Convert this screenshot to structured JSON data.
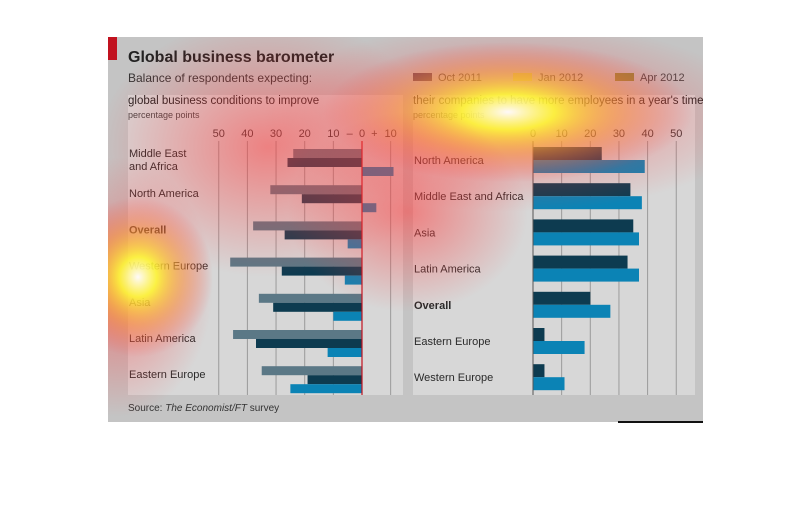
{
  "title": "Global business barometer",
  "subtitle": "Balance of respondents expecting:",
  "source_prefix": "Source: ",
  "source_italic": "The Economist/FT",
  "source_suffix": " survey",
  "colors": {
    "oct2011": "#5b7886",
    "jan2012": "#0d3b50",
    "apr2012": "#0b83b5",
    "zero_line": "#c1121f",
    "accent": "#c1121f"
  },
  "legend": [
    {
      "label": "Oct 2011",
      "color_key": "oct2011"
    },
    {
      "label": "Jan 2012",
      "color_key": "jan2012"
    },
    {
      "label": "Apr 2012",
      "color_key": "apr2012"
    }
  ],
  "chart_data": [
    {
      "type": "bar",
      "orientation": "horizontal",
      "title": "global business conditions to improve",
      "unit": "percentage points",
      "tick_labels": [
        "50",
        "40",
        "30",
        "20",
        "10",
        "–",
        "0",
        "+",
        "10"
      ],
      "ticks": [
        -50,
        -40,
        -30,
        -20,
        -10,
        0,
        10
      ],
      "xlim": [
        -55,
        13
      ],
      "grid": true,
      "categories": [
        "Middle East\nand Africa",
        "North America",
        "Overall",
        "Western Europe",
        "Asia",
        "Latin America",
        "Eastern Europe"
      ],
      "bold_category": "Overall",
      "series": [
        {
          "name": "Oct 2011",
          "values": [
            -24,
            -32,
            -38,
            -46,
            -36,
            -45,
            -35
          ]
        },
        {
          "name": "Jan 2012",
          "values": [
            -26,
            -21,
            -27,
            -28,
            -31,
            -37,
            -19
          ]
        },
        {
          "name": "Apr 2012",
          "values": [
            11,
            5,
            -5,
            -6,
            -10,
            -12,
            -25
          ]
        }
      ]
    },
    {
      "type": "bar",
      "orientation": "horizontal",
      "title": "their companies to have more employees in a year's time",
      "unit": "percentage points",
      "tick_labels": [
        "0",
        "10",
        "20",
        "30",
        "40",
        "50"
      ],
      "ticks": [
        0,
        10,
        20,
        30,
        40,
        50
      ],
      "xlim": [
        0,
        55
      ],
      "grid": true,
      "categories": [
        "North America",
        "Middle East and Africa",
        "Asia",
        "Latin America",
        "Overall",
        "Eastern Europe",
        "Western Europe"
      ],
      "bold_category": "Overall",
      "series": [
        {
          "name": "Jan 2012",
          "values": [
            24,
            34,
            35,
            33,
            20,
            4,
            4
          ]
        },
        {
          "name": "Apr 2012",
          "values": [
            39,
            38,
            37,
            37,
            27,
            18,
            11
          ]
        }
      ]
    }
  ]
}
